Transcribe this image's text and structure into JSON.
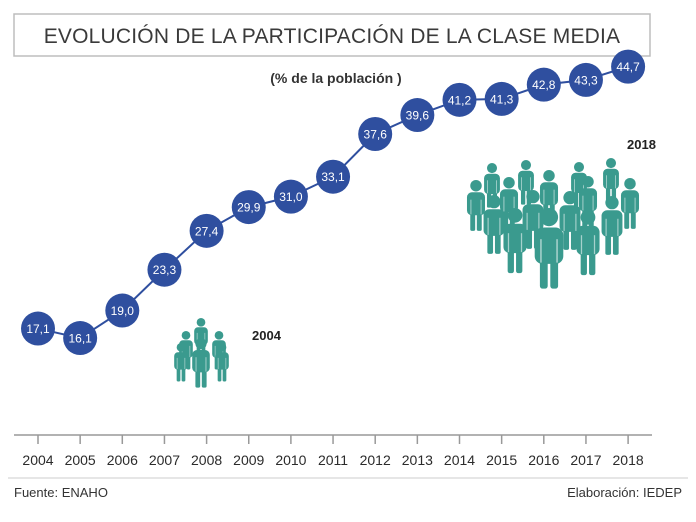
{
  "header": {
    "title": "EVOLUCIÓN DE LA PARTICIPACIÓN DE LA CLASE MEDIA",
    "subtitle": "(% de la población )"
  },
  "chart_data": {
    "type": "line",
    "title": "EVOLUCIÓN DE LA PARTICIPACIÓN DE LA CLASE MEDIA",
    "subtitle": "(% de la población )",
    "categories": [
      "2004",
      "2005",
      "2006",
      "2007",
      "2008",
      "2009",
      "2010",
      "2011",
      "2012",
      "2013",
      "2014",
      "2015",
      "2016",
      "2017",
      "2018"
    ],
    "values": [
      17.1,
      16.1,
      19.0,
      23.3,
      27.4,
      29.9,
      31.0,
      33.1,
      37.6,
      39.6,
      41.2,
      41.3,
      42.8,
      43.3,
      44.7
    ],
    "value_labels": [
      "17,1",
      "16,1",
      "19,0",
      "23,3",
      "27,4",
      "29,9",
      "31,0",
      "33,1",
      "37,6",
      "39,6",
      "41,2",
      "41,3",
      "42,8",
      "43,3",
      "44,7"
    ],
    "annotations": [
      "2004",
      "2018"
    ],
    "grid": false,
    "legend": "none"
  },
  "illustrations": {
    "crowd_small": {
      "icon": "people-group-icon",
      "label": "2004"
    },
    "crowd_large": {
      "icon": "people-group-icon",
      "label": "2018"
    }
  },
  "footer": {
    "source": "Fuente: ENAHO",
    "credit": "Elaboración: IEDEP"
  },
  "colors": {
    "dot": "#2f4f9f",
    "line": "#2f4f9f",
    "people": "#3a9a8e",
    "text": "#333333"
  }
}
